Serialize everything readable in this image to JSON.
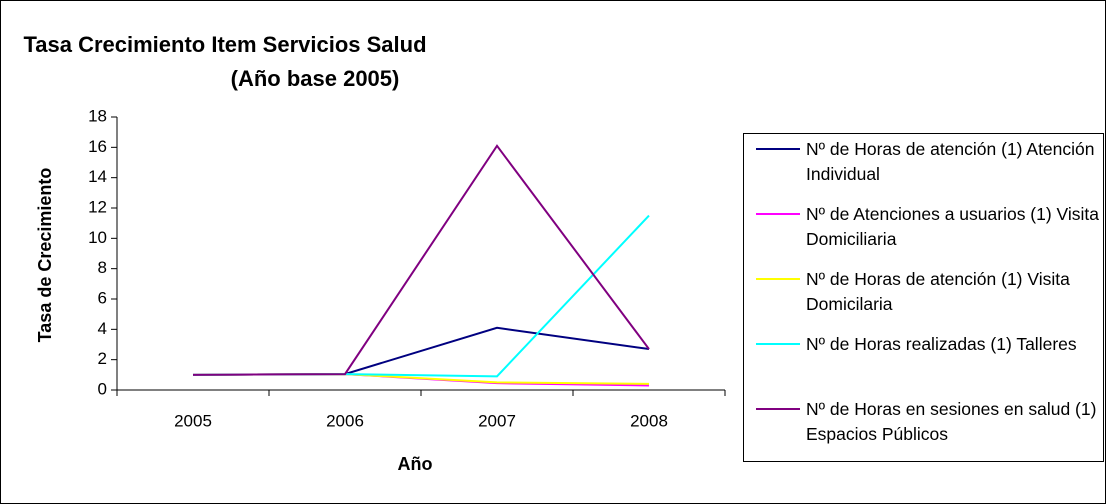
{
  "chart_data": {
    "type": "line",
    "title": "Tasa Crecimiento Item Servicios Salud",
    "subtitle": "(Año base 2005)",
    "y_label": "Tasa de Crecimiento",
    "x_label": "Año",
    "categories": [
      "2005",
      "2006",
      "2007",
      "2008"
    ],
    "series": [
      {
        "name": "Nº de Horas de atención (1) Atención Individual",
        "color": "#000080",
        "values": [
          1,
          1.05,
          4.1,
          2.7
        ]
      },
      {
        "name": "Nº de Atenciones a usuarios (1) Visita Domiciliaria",
        "color": "#ff00ff",
        "values": [
          1,
          1.05,
          0.45,
          0.3
        ]
      },
      {
        "name": "Nº de Horas de atención (1) Visita Domicilaria",
        "color": "#ffff00",
        "values": [
          1,
          1.05,
          0.5,
          0.4
        ]
      },
      {
        "name": "Nº de Horas realizadas (1) Talleres",
        "color": "#00ffff",
        "values": [
          1,
          1.05,
          0.9,
          11.5
        ]
      },
      {
        "name": "Nº de Horas en sesiones en salud (1) Espacios Públicos",
        "color": "#800080",
        "values": [
          1,
          1.05,
          16.1,
          2.7
        ]
      }
    ],
    "ylim": [
      0,
      18
    ],
    "yticks": [
      0,
      2,
      4,
      6,
      8,
      10,
      12,
      14,
      16,
      18
    ],
    "grid": false
  }
}
